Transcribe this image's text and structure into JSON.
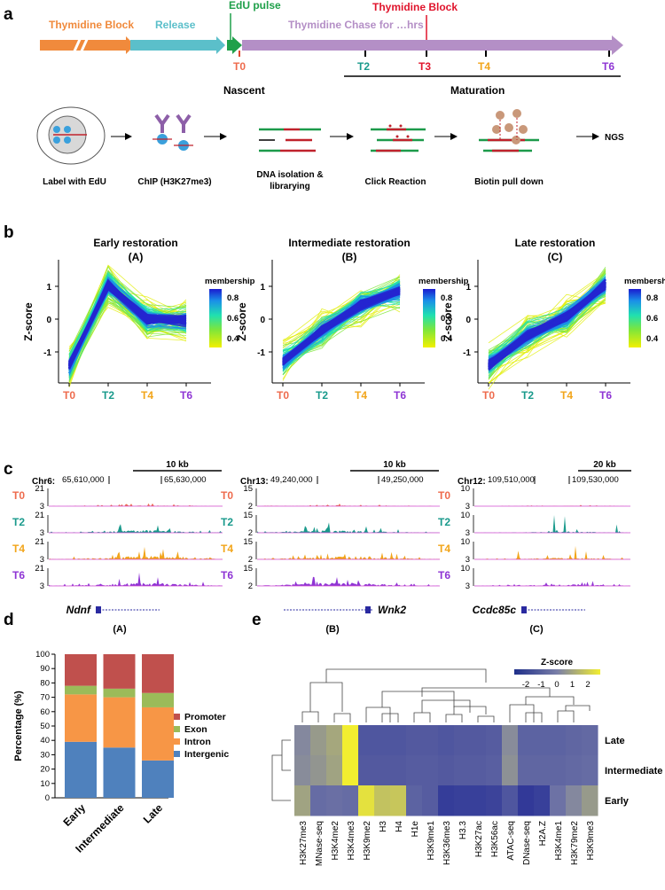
{
  "panel_labels": {
    "a": "a",
    "b": "b",
    "c": "c",
    "d": "d",
    "e": "e"
  },
  "timeline": {
    "thymidine_block": "Thymidine Block",
    "release": "Release",
    "edu_pulse": "EdU pulse",
    "thymidine_block_2": "Thymidine Block",
    "chase": "Thymidine Chase for …hrs",
    "t0": "T0",
    "t2": "T2",
    "t3": "T3",
    "t4": "T4",
    "t6": "T6",
    "nascent": "Nascent",
    "maturation": "Maturation"
  },
  "workflow": {
    "steps": [
      "Label with EdU",
      "ChIP (H3K27me3)",
      "DNA isolation &",
      "librarying",
      "Click Reaction",
      "Biotin pull down"
    ],
    "ngs": "NGS"
  },
  "clusters": [
    {
      "title": "Early restoration",
      "letter": "(A)",
      "open": "(",
      "inner": "A",
      "close": ")"
    },
    {
      "title": "Intermediate restoration",
      "letter": "(B)",
      "open": "(",
      "inner": "B",
      "close": ")"
    },
    {
      "title": "Late restoration",
      "letter": "(C)",
      "open": "(",
      "inner": "C",
      "close": ")"
    }
  ],
  "cluster_axes": {
    "ylabel": "Z-score",
    "yticks": [
      "1",
      "0",
      "-1"
    ],
    "xticks": [
      "T0",
      "T2",
      "T4",
      "T6"
    ],
    "membership_label": "membership",
    "membership_ticks": [
      "0.8",
      "0.6",
      "0.4"
    ]
  },
  "tracks": [
    {
      "chrom": "Chr6:",
      "coord1": "65,610,000",
      "coord2": "65,630,000",
      "scale": "10 kb",
      "ymax": [
        "21",
        "21",
        "21",
        "21"
      ],
      "ymin": "3",
      "gene": "Ndnf",
      "letter": "(A)"
    },
    {
      "chrom": "Chr13:",
      "coord1": "49,240,000",
      "coord2": "49,250,000",
      "scale": "10 kb",
      "ymax": [
        "15",
        "15",
        "15",
        "15"
      ],
      "ymin": "2",
      "gene": "Wnk2",
      "letter": "(B)"
    },
    {
      "chrom": "Chr12:",
      "coord1": "109,510,000",
      "coord2": "109,530,000",
      "scale": "20 kb",
      "ymax": [
        "10",
        "10",
        "10",
        "10"
      ],
      "ymin": "3",
      "gene": "Ccdc85c",
      "letter": "(C)"
    }
  ],
  "track_labels": [
    "T0",
    "T2",
    "T4",
    "T6"
  ],
  "colors": {
    "t0": "#ee6b4d",
    "t2": "#1a9a8c",
    "t3": "#e0142c",
    "t4": "#f2a51a",
    "t6": "#8e34d4",
    "promoter": "#c0504d",
    "exon": "#9bbb59",
    "intron": "#f79646",
    "intergenic": "#4f81bd",
    "block_arrow": "#f08a3c",
    "release_arrow": "#5bbfca",
    "edu_arrow": "#1fa04a",
    "chase_arrow": "#b48fc6"
  },
  "chart_data": [
    {
      "type": "bar",
      "stacked": true,
      "ylabel": "Percentage (%)",
      "ylim": [
        0,
        100
      ],
      "yticks": [
        "0",
        "10",
        "20",
        "30",
        "40",
        "50",
        "60",
        "70",
        "80",
        "90",
        "100"
      ],
      "categories": [
        "Early",
        "Intermediate",
        "Late"
      ],
      "series": [
        {
          "name": "Intergenic",
          "values": [
            39,
            35,
            26
          ]
        },
        {
          "name": "Intron",
          "values": [
            33,
            35,
            37
          ]
        },
        {
          "name": "Exon",
          "values": [
            6,
            6,
            10
          ]
        },
        {
          "name": "Promoter",
          "values": [
            22,
            24,
            27
          ]
        }
      ],
      "legend": [
        "Promoter",
        "Exon",
        "Intron",
        "Intergenic"
      ]
    },
    {
      "type": "heatmap",
      "colorbar_title": "Z-score",
      "colorbar_ticks": [
        "-2",
        "-1",
        "0",
        "1",
        "2"
      ],
      "rows": [
        "Late",
        "Intermediate",
        "Early"
      ],
      "columns": [
        "H3K27me3",
        "MNase-seq",
        "H3K4me2",
        "H3K4me3",
        "H3K9me2",
        "H3",
        "H4",
        "H1e",
        "H3K9me1",
        "H3K36me3",
        "H3.3",
        "H3K27ac",
        "H3K56ac",
        "ATAC-seq",
        "DNase-seq",
        "H2A.Z",
        "H3K4me1",
        "H3K79me2",
        "H3K9me3"
      ],
      "values": [
        [
          0.2,
          0.6,
          0.9,
          2.5,
          -1.3,
          -1.3,
          -1.3,
          -1.2,
          -1.2,
          -1.3,
          -1.2,
          -1.2,
          -1.1,
          0.3,
          -0.9,
          -0.9,
          -0.9,
          -0.8,
          -0.7
        ],
        [
          0.3,
          0.5,
          0.8,
          2.5,
          -1.2,
          -1.2,
          -1.2,
          -1.1,
          -1.1,
          -1.2,
          -1.1,
          -1.1,
          -1.0,
          0.4,
          -0.8,
          -0.8,
          -0.8,
          -0.7,
          -0.6
        ],
        [
          0.8,
          -0.6,
          -0.5,
          -0.6,
          2.2,
          1.5,
          1.6,
          -0.9,
          -1.1,
          -2.1,
          -2.0,
          -2.0,
          -1.9,
          -1.3,
          -2.2,
          -2.0,
          -0.4,
          0.2,
          0.6
        ]
      ]
    }
  ]
}
